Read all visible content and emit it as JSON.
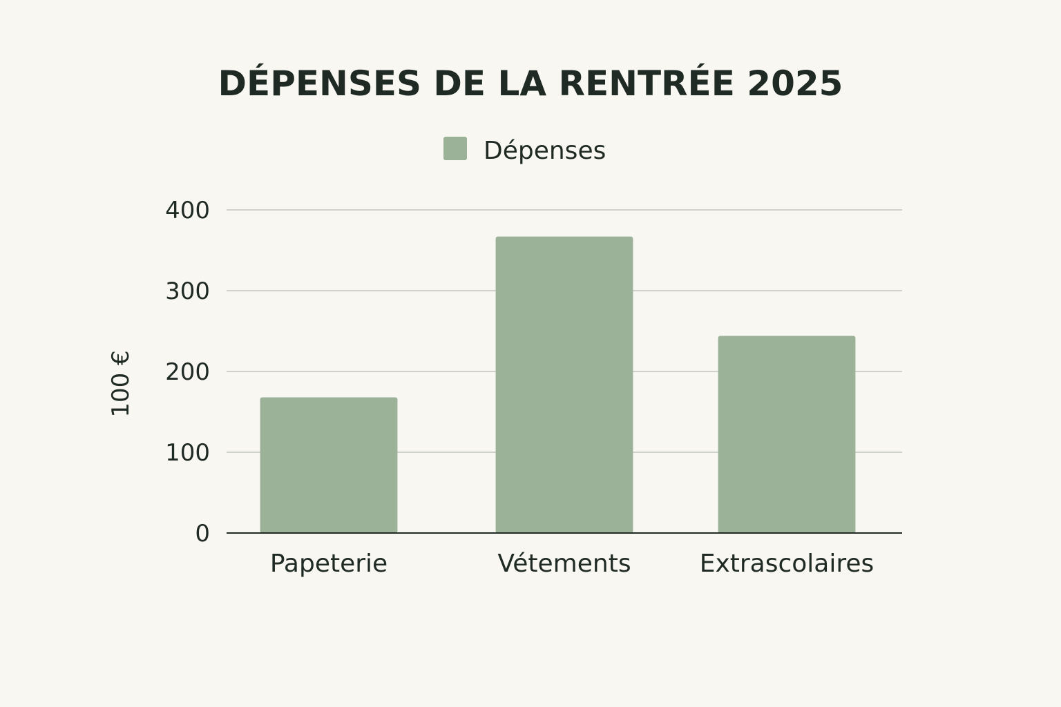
{
  "chart_data": {
    "type": "bar",
    "title": "DÉPENSES DE LA RENTRÉE 2025",
    "categories": [
      "Papeterie",
      "Vétements",
      "Extrascolaires"
    ],
    "series": [
      {
        "name": "Dépenses",
        "values": [
          168,
          367,
          244
        ],
        "color": "#9bb298"
      }
    ],
    "xlabel": "",
    "ylabel": "100 €",
    "ylim": [
      0,
      400
    ],
    "yticks": [
      0,
      100,
      200,
      300,
      400
    ],
    "grid": true,
    "legend_position": "top-center",
    "colors": {
      "background": "#f9f7f2",
      "text": "#1f2a24",
      "grid": "#cfd2cc"
    }
  }
}
